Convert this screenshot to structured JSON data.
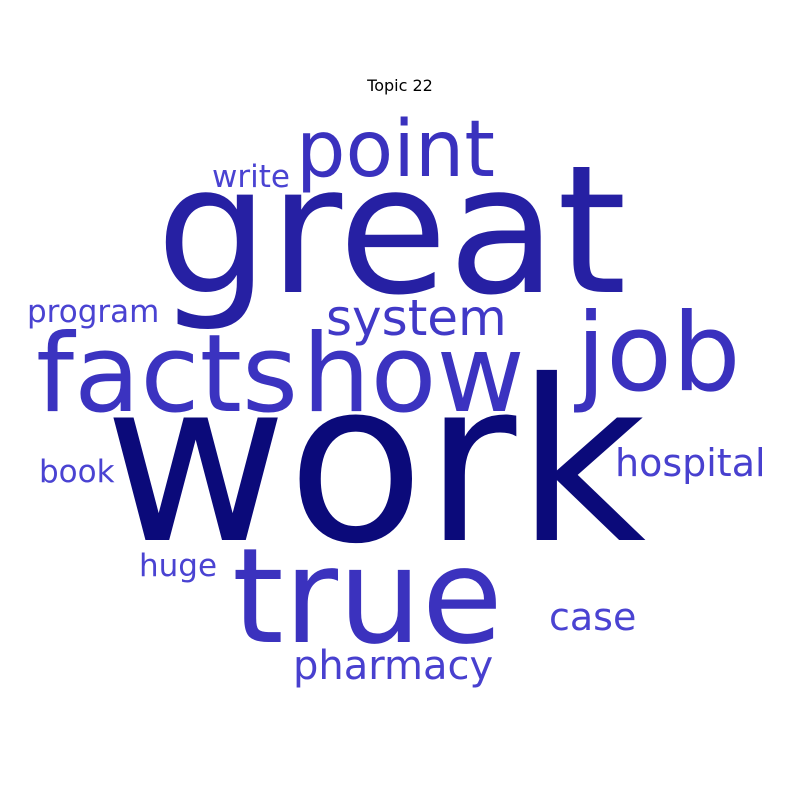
{
  "title": "Topic 22",
  "words": [
    {
      "text": "work",
      "color": "#0b0a7a"
    },
    {
      "text": "great",
      "color": "#2620a3"
    },
    {
      "text": "true",
      "color": "#3b32be"
    },
    {
      "text": "facts",
      "color": "#3b33c0"
    },
    {
      "text": "how",
      "color": "#3b33c0"
    },
    {
      "text": "job",
      "color": "#3a31be"
    },
    {
      "text": "point",
      "color": "#3a31be"
    },
    {
      "text": "system",
      "color": "#4139c7"
    },
    {
      "text": "hospital",
      "color": "#4840cf"
    },
    {
      "text": "pharmacy",
      "color": "#4840cf"
    },
    {
      "text": "case",
      "color": "#4a43d2"
    },
    {
      "text": "write",
      "color": "#4a43d2"
    },
    {
      "text": "program",
      "color": "#4a43d2"
    },
    {
      "text": "huge",
      "color": "#4a43d2"
    },
    {
      "text": "book",
      "color": "#4a43d2"
    }
  ]
}
